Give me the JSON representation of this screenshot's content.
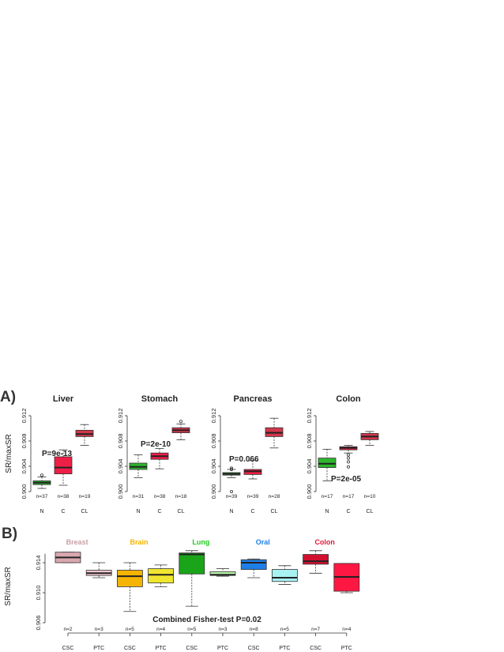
{
  "colors": {
    "N": "#2db52d",
    "C": "#ee1f47",
    "CL": "#d1374c",
    "Breast_box": "#d9a7b0",
    "Breast_text": "#c9a0a7",
    "Brain_box": "#f5b400",
    "Brain_text": "#f5b400",
    "Lung_box": "#19a419",
    "Lung_text": "#22cc22",
    "Oral_box": "#1e7fe8",
    "Oral_text": "#1e7fe8",
    "Colon_box": "#d21030",
    "Colon_text": "#e01a3c",
    "PTC_Breast": "#f7c7d3",
    "PTC_Brain": "#f0e630",
    "PTC_Lung": "#b8f5a8",
    "PTC_Oral": "#a8f2f2",
    "PTC_Colon": "#ff1744"
  },
  "labels": {
    "panel_a": "A)",
    "panel_b": "B)",
    "ylabel": "SR/maxSR"
  },
  "chart_data": [
    {
      "type": "box",
      "panel": "A",
      "ylabel": "SR/maxSR",
      "ylim": [
        0.9,
        0.912
      ],
      "yticks": [
        "0.900",
        "0.904",
        "0.908",
        "0.912"
      ],
      "facets": [
        {
          "title": "Liver",
          "pvalue": "P=9e-13",
          "boxes": [
            {
              "cat": "N",
              "n": "n=37",
              "whislo": 0.9005,
              "q1": 0.9011,
              "med": 0.9014,
              "q3": 0.9017,
              "whishi": 0.9023,
              "outliers": [
                0.9026
              ]
            },
            {
              "cat": "C",
              "n": "n=38",
              "whislo": 0.901,
              "q1": 0.9028,
              "med": 0.9038,
              "q3": 0.9055,
              "whishi": 0.9066,
              "outliers": []
            },
            {
              "cat": "CL",
              "n": "n=19",
              "whislo": 0.9073,
              "q1": 0.9087,
              "med": 0.9091,
              "q3": 0.9097,
              "whishi": 0.9106,
              "outliers": []
            }
          ]
        },
        {
          "title": "Stomach",
          "pvalue": "P=2e-10",
          "boxes": [
            {
              "cat": "N",
              "n": "n=31",
              "whislo": 0.9022,
              "q1": 0.9035,
              "med": 0.9039,
              "q3": 0.9045,
              "whishi": 0.9058,
              "outliers": []
            },
            {
              "cat": "C",
              "n": "n=38",
              "whislo": 0.9036,
              "q1": 0.9051,
              "med": 0.9056,
              "q3": 0.9061,
              "whishi": 0.9068,
              "outliers": []
            },
            {
              "cat": "CL",
              "n": "n=18",
              "whislo": 0.9082,
              "q1": 0.9093,
              "med": 0.9097,
              "q3": 0.9101,
              "whishi": 0.9107,
              "outliers": [
                0.9111
              ]
            }
          ]
        },
        {
          "title": "Pancreas",
          "pvalue": "P=0.066",
          "boxes": [
            {
              "cat": "N",
              "n": "n=39",
              "whislo": 0.9022,
              "q1": 0.9026,
              "med": 0.9028,
              "q3": 0.903,
              "whishi": 0.9035,
              "outliers": [
                0.9035,
                0.9037,
                0.9
              ]
            },
            {
              "cat": "C",
              "n": "n=39",
              "whislo": 0.902,
              "q1": 0.9027,
              "med": 0.9032,
              "q3": 0.9035,
              "whishi": 0.9049,
              "outliers": []
            },
            {
              "cat": "CL",
              "n": "n=28",
              "whislo": 0.9069,
              "q1": 0.9087,
              "med": 0.9093,
              "q3": 0.9101,
              "whishi": 0.9116,
              "outliers": []
            }
          ]
        },
        {
          "title": "Colon",
          "pvalue": "P=2e-05",
          "boxes": [
            {
              "cat": "N",
              "n": "n=17",
              "whislo": 0.9017,
              "q1": 0.9038,
              "med": 0.9044,
              "q3": 0.9053,
              "whishi": 0.9067,
              "outliers": []
            },
            {
              "cat": "C",
              "n": "n=17",
              "whislo": 0.9061,
              "q1": 0.9066,
              "med": 0.9069,
              "q3": 0.9071,
              "whishi": 0.9073,
              "outliers": [
                0.9058,
                0.9053,
                0.9047,
                0.9039
              ]
            },
            {
              "cat": "CL",
              "n": "n=10",
              "whislo": 0.9073,
              "q1": 0.9082,
              "med": 0.9087,
              "q3": 0.9092,
              "whishi": 0.9095,
              "outliers": []
            }
          ]
        }
      ]
    },
    {
      "type": "box",
      "panel": "B",
      "ylabel": "SR/maxSR",
      "ylim": [
        0.906,
        0.916
      ],
      "yticks": [
        "0.906",
        "0.910",
        "0.914"
      ],
      "annotation": "Combined Fisher-test P=0.02",
      "groups": [
        "Breast",
        "Brain",
        "Lung",
        "Oral",
        "Colon"
      ],
      "boxes": [
        {
          "group": "Breast",
          "cat": "CSC",
          "n": "n=2",
          "whislo": 0.914,
          "q1": 0.914,
          "med": 0.9147,
          "q3": 0.9154,
          "whishi": 0.9154
        },
        {
          "group": "Breast",
          "cat": "PTC",
          "n": "n=3",
          "whislo": 0.912,
          "q1": 0.9123,
          "med": 0.9126,
          "q3": 0.913,
          "whishi": 0.914
        },
        {
          "group": "Brain",
          "cat": "CSC",
          "n": "n=5",
          "whislo": 0.9075,
          "q1": 0.9108,
          "med": 0.9122,
          "q3": 0.913,
          "whishi": 0.914
        },
        {
          "group": "Brain",
          "cat": "PTC",
          "n": "n=4",
          "whislo": 0.9108,
          "q1": 0.9113,
          "med": 0.9124,
          "q3": 0.9132,
          "whishi": 0.9137
        },
        {
          "group": "Lung",
          "cat": "CSC",
          "n": "n=5",
          "whislo": 0.9082,
          "q1": 0.9125,
          "med": 0.9151,
          "q3": 0.9153,
          "whishi": 0.9156
        },
        {
          "group": "Lung",
          "cat": "PTC",
          "n": "n=3",
          "whislo": 0.9122,
          "q1": 0.9123,
          "med": 0.9124,
          "q3": 0.9128,
          "whishi": 0.9132
        },
        {
          "group": "Oral",
          "cat": "CSC",
          "n": "n=8",
          "whislo": 0.912,
          "q1": 0.9131,
          "med": 0.914,
          "q3": 0.9144,
          "whishi": 0.9145
        },
        {
          "group": "Oral",
          "cat": "PTC",
          "n": "n=5",
          "whislo": 0.9111,
          "q1": 0.9115,
          "med": 0.912,
          "q3": 0.9131,
          "whishi": 0.9136
        },
        {
          "group": "Colon",
          "cat": "CSC",
          "n": "n=7",
          "whislo": 0.9126,
          "q1": 0.9138,
          "med": 0.9142,
          "q3": 0.9151,
          "whishi": 0.9156
        },
        {
          "group": "Colon",
          "cat": "PTC",
          "n": "n=4",
          "whislo": 0.91,
          "q1": 0.9102,
          "med": 0.9121,
          "q3": 0.9139,
          "whishi": 0.9139
        }
      ]
    }
  ]
}
